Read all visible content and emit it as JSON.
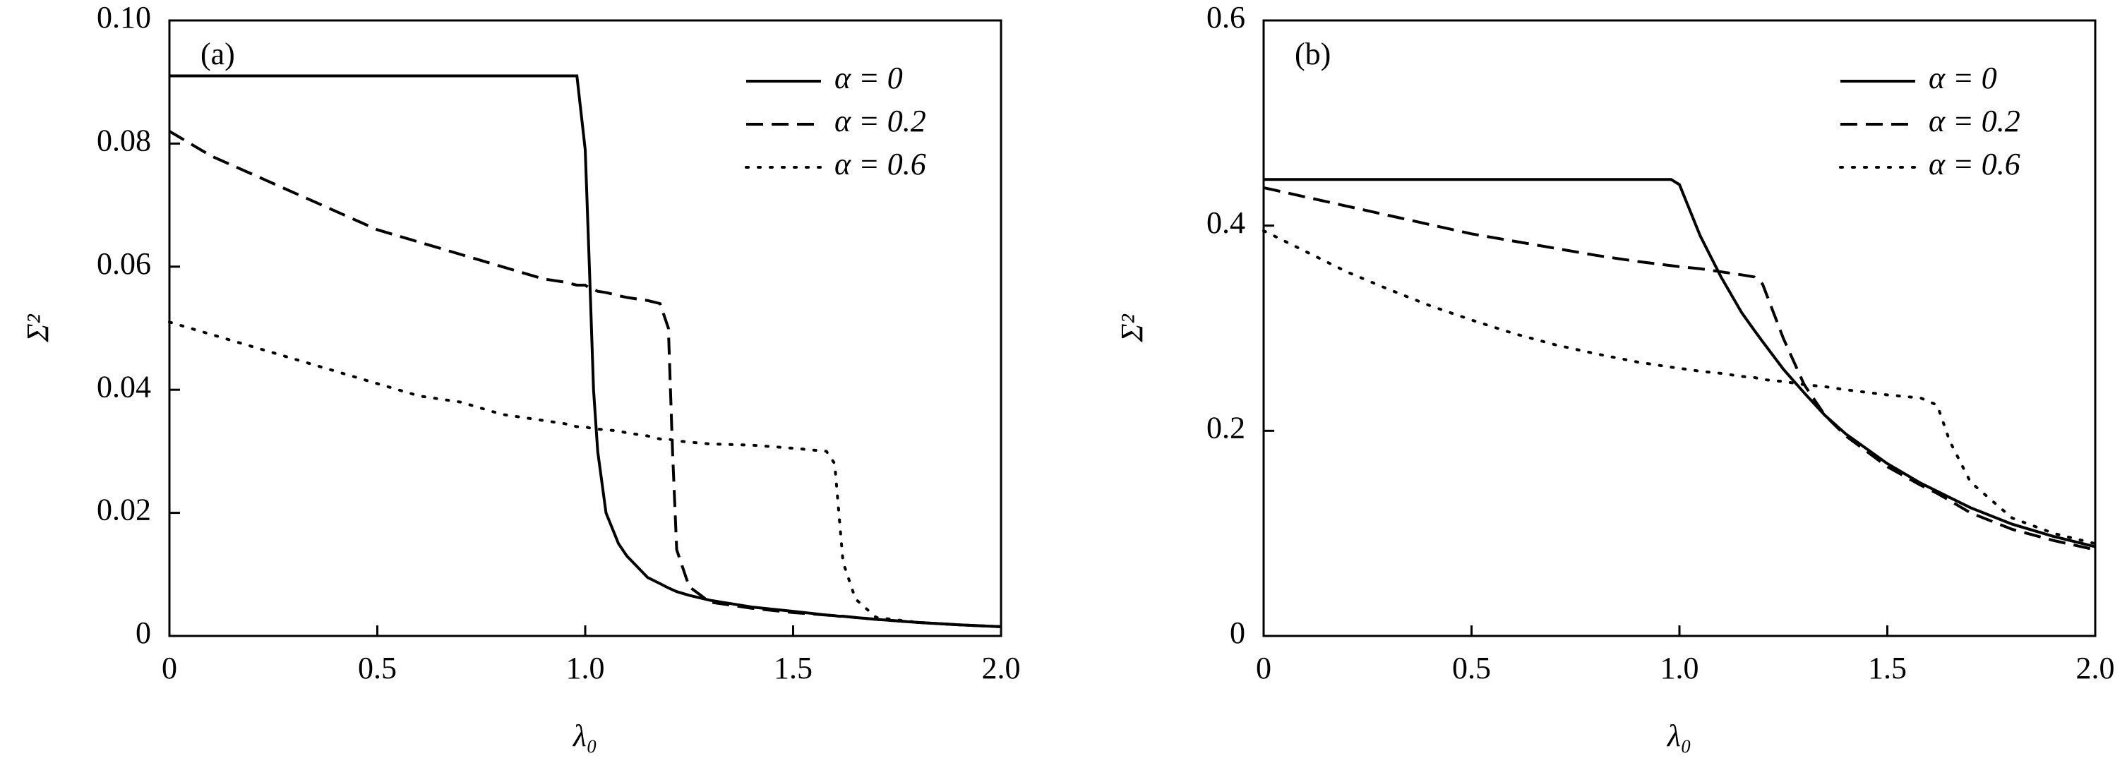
{
  "chart_data": [
    {
      "type": "line",
      "annotation": "(a)",
      "xlabel": "λ₀",
      "ylabel": "Σ²",
      "legend": "upper right",
      "xlim": [
        0,
        2
      ],
      "xticks": [
        0,
        0.5,
        {
          "value": 1,
          "label": "1.0"
        },
        1.5,
        {
          "value": 2,
          "label": "2.0"
        }
      ],
      "ylim": [
        0,
        0.1
      ],
      "yticks": [
        0,
        0.02,
        0.04,
        0.06,
        0.08,
        {
          "value": 0.1,
          "label": "0.10"
        }
      ],
      "x": [
        0,
        0.1,
        0.2,
        0.3,
        0.4,
        0.5,
        0.6,
        0.7,
        0.8,
        0.9,
        0.95,
        0.98,
        1.0,
        1.01,
        1.02,
        1.03,
        1.05,
        1.08,
        1.1,
        1.15,
        1.18,
        1.2,
        1.21,
        1.22,
        1.25,
        1.3,
        1.4,
        1.5,
        1.58,
        1.6,
        1.61,
        1.62,
        1.65,
        1.7,
        1.8,
        1.9,
        2.0
      ],
      "series": [
        {
          "name": "α = 0",
          "color": "#000000",
          "style": "solid",
          "values": [
            0.091,
            0.091,
            0.091,
            0.091,
            0.091,
            0.091,
            0.091,
            0.091,
            0.091,
            0.091,
            0.091,
            0.091,
            0.079,
            0.06,
            0.04,
            0.03,
            0.02,
            0.015,
            0.013,
            0.0095,
            0.0085,
            0.0078,
            0.0075,
            0.0072,
            0.0066,
            0.0058,
            0.0047,
            0.004,
            0.0034,
            0.0033,
            0.0032,
            0.0032,
            0.003,
            0.0027,
            0.0022,
            0.0018,
            0.0015
          ]
        },
        {
          "name": "α = 0.2",
          "color": "#000000",
          "style": "dashed",
          "values": [
            0.082,
            0.078,
            0.075,
            0.072,
            0.069,
            0.066,
            0.064,
            0.062,
            0.06,
            0.058,
            0.0575,
            0.057,
            0.057,
            0.0565,
            0.0563,
            0.056,
            0.0558,
            0.0553,
            0.055,
            0.0545,
            0.054,
            0.05,
            0.03,
            0.014,
            0.008,
            0.0055,
            0.0045,
            0.0038,
            0.0034,
            0.0033,
            0.0032,
            0.0032,
            0.003,
            0.0027,
            0.0022,
            0.0018,
            0.0015
          ]
        },
        {
          "name": "α = 0.6",
          "color": "#000000",
          "style": "dotted",
          "values": [
            0.051,
            0.049,
            0.047,
            0.045,
            0.043,
            0.041,
            0.039,
            0.038,
            0.036,
            0.035,
            0.0345,
            0.034,
            0.034,
            0.0338,
            0.0337,
            0.0336,
            0.0335,
            0.0333,
            0.033,
            0.0325,
            0.032,
            0.032,
            0.0318,
            0.0317,
            0.0315,
            0.0312,
            0.031,
            0.0305,
            0.03,
            0.028,
            0.02,
            0.012,
            0.006,
            0.003,
            0.0022,
            0.0018,
            0.0015
          ]
        }
      ]
    },
    {
      "type": "line",
      "annotation": "(b)",
      "xlabel": "λ₀",
      "ylabel": "Σ²",
      "legend": "upper right",
      "xlim": [
        0,
        2
      ],
      "xticks": [
        0,
        0.5,
        {
          "value": 1,
          "label": "1.0"
        },
        1.5,
        {
          "value": 2,
          "label": "2.0"
        }
      ],
      "ylim": [
        0,
        0.6
      ],
      "yticks": [
        0,
        0.2,
        0.4,
        0.6
      ],
      "x": [
        0,
        0.1,
        0.2,
        0.3,
        0.4,
        0.5,
        0.6,
        0.7,
        0.8,
        0.9,
        0.98,
        1.0,
        1.05,
        1.1,
        1.15,
        1.18,
        1.2,
        1.25,
        1.3,
        1.35,
        1.4,
        1.5,
        1.58,
        1.62,
        1.65,
        1.7,
        1.8,
        1.9,
        2.0
      ],
      "series": [
        {
          "name": "α = 0",
          "color": "#000000",
          "style": "solid",
          "values": [
            0.445,
            0.445,
            0.445,
            0.445,
            0.445,
            0.445,
            0.445,
            0.445,
            0.445,
            0.445,
            0.445,
            0.44,
            0.39,
            0.35,
            0.315,
            0.298,
            0.287,
            0.26,
            0.237,
            0.215,
            0.197,
            0.168,
            0.149,
            0.141,
            0.135,
            0.125,
            0.109,
            0.097,
            0.087
          ]
        },
        {
          "name": "α = 0.2",
          "color": "#000000",
          "style": "dashed",
          "values": [
            0.437,
            0.428,
            0.419,
            0.41,
            0.401,
            0.392,
            0.385,
            0.378,
            0.371,
            0.365,
            0.361,
            0.36,
            0.358,
            0.355,
            0.352,
            0.35,
            0.343,
            0.29,
            0.245,
            0.215,
            0.195,
            0.165,
            0.147,
            0.139,
            0.132,
            0.12,
            0.104,
            0.093,
            0.084
          ]
        },
        {
          "name": "α = 0.6",
          "color": "#000000",
          "style": "dotted",
          "values": [
            0.395,
            0.375,
            0.355,
            0.338,
            0.322,
            0.308,
            0.295,
            0.284,
            0.275,
            0.267,
            0.262,
            0.261,
            0.258,
            0.256,
            0.253,
            0.252,
            0.25,
            0.248,
            0.245,
            0.243,
            0.24,
            0.235,
            0.232,
            0.225,
            0.19,
            0.15,
            0.115,
            0.1,
            0.09
          ]
        }
      ]
    }
  ]
}
